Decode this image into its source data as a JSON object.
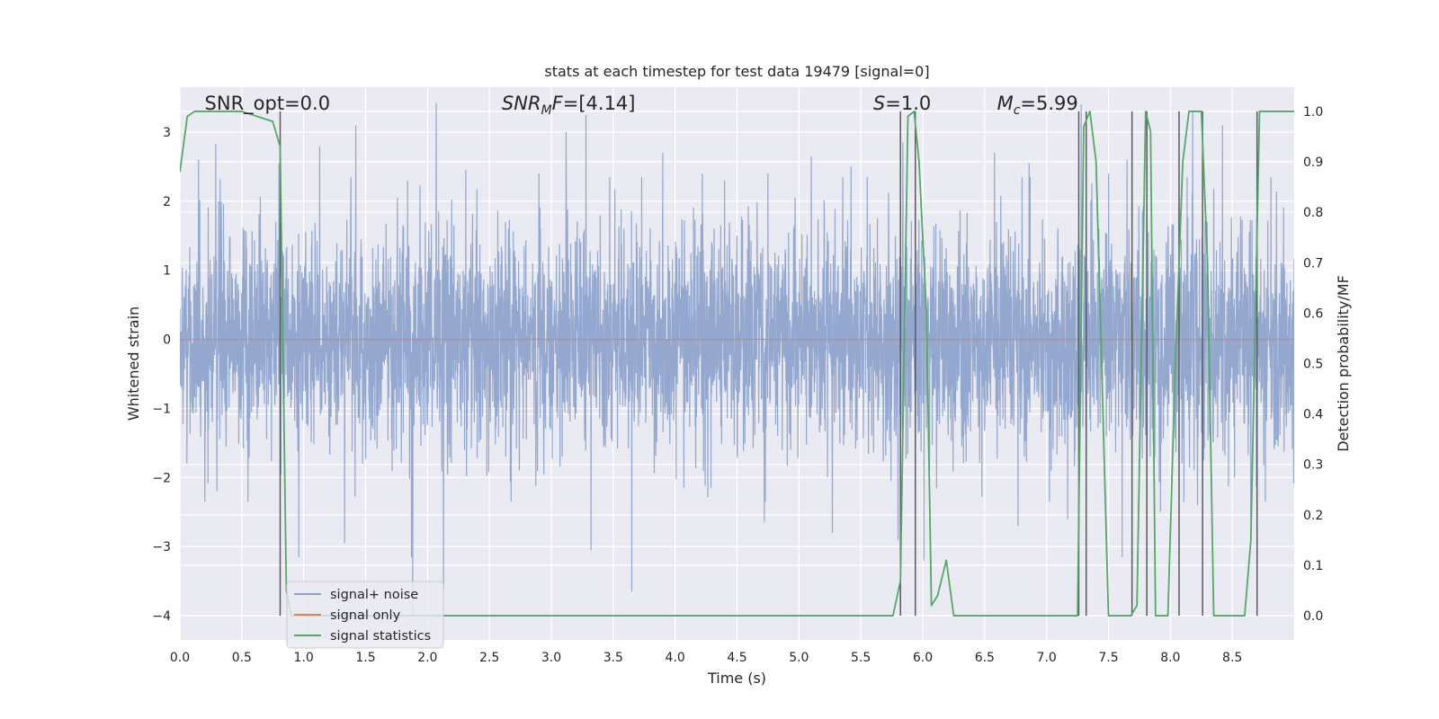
{
  "chart_data": {
    "type": "line",
    "title": "stats at each timestep for test data 19479 [signal=0]",
    "xlabel": "Time (s)",
    "ylabel": "Whitened strain",
    "ylabel_right": "Detection probability/MF",
    "xlim": [
      0.0,
      9.0
    ],
    "ylim": [
      -4.35,
      3.65
    ],
    "ylim_right": [
      -0.048,
      1.048
    ],
    "x_ticks": [
      0.0,
      0.5,
      1.0,
      1.5,
      2.0,
      2.5,
      3.0,
      3.5,
      4.0,
      4.5,
      5.0,
      5.5,
      6.0,
      6.5,
      7.0,
      7.5,
      8.0,
      8.5
    ],
    "x_tick_labels": [
      "0.0",
      "0.5",
      "1.0",
      "1.5",
      "2.0",
      "2.5",
      "3.0",
      "3.5",
      "4.0",
      "4.5",
      "5.0",
      "5.5",
      "6.0",
      "6.5",
      "7.0",
      "7.5",
      "8.0",
      "8.5"
    ],
    "y_ticks": [
      -4,
      -3,
      -2,
      -1,
      0,
      1,
      2,
      3
    ],
    "y_tick_labels": [
      "−4",
      "−3",
      "−2",
      "−1",
      "0",
      "1",
      "2",
      "3"
    ],
    "y_right_ticks": [
      0.0,
      0.1,
      0.2,
      0.3,
      0.4,
      0.5,
      0.6,
      0.7,
      0.8,
      0.9,
      1.0
    ],
    "y_right_tick_labels": [
      "0.0",
      "0.1",
      "0.2",
      "0.3",
      "0.4",
      "0.5",
      "0.6",
      "0.7",
      "0.8",
      "0.9",
      "1.0"
    ],
    "annotations": [
      {
        "text": "SNR_opt=0.0",
        "x": 0.2
      },
      {
        "text": "SNR_MF=[4.14]",
        "x": 2.6
      },
      {
        "text": "S=1.0",
        "x": 5.6
      },
      {
        "text": "M_c=5.99",
        "x": 6.6
      }
    ],
    "series": [
      {
        "name": "signal+ noise",
        "color": "#8ea3cc",
        "axis": "left",
        "noise_std": 0.78,
        "peaks_up": [
          [
            0.15,
            2.6
          ],
          [
            0.29,
            2.83
          ],
          [
            0.8,
            2.55
          ],
          [
            1.13,
            2.8
          ],
          [
            1.42,
            2.25
          ],
          [
            1.42,
            3.1
          ],
          [
            1.84,
            2.3
          ],
          [
            2.07,
            3.42
          ],
          [
            2.31,
            2.45
          ],
          [
            2.9,
            2.4
          ],
          [
            3.12,
            3.0
          ],
          [
            3.28,
            3.25
          ],
          [
            3.9,
            2.7
          ],
          [
            4.22,
            2.4
          ],
          [
            4.4,
            2.3
          ],
          [
            4.75,
            2.4
          ],
          [
            5.1,
            2.65
          ],
          [
            5.42,
            2.5
          ],
          [
            5.84,
            2.85
          ],
          [
            6.58,
            2.7
          ],
          [
            6.86,
            2.55
          ],
          [
            7.28,
            3.4
          ],
          [
            7.5,
            2.4
          ],
          [
            7.65,
            2.6
          ],
          [
            8.18,
            3.3
          ],
          [
            8.42,
            3.1
          ]
        ],
        "peaks_down": [
          [
            0.3,
            -2.2
          ],
          [
            0.55,
            -2.35
          ],
          [
            0.96,
            -3.15
          ],
          [
            1.33,
            -2.95
          ],
          [
            1.87,
            -3.15
          ],
          [
            1.88,
            -4.0
          ],
          [
            2.13,
            -3.65
          ],
          [
            3.32,
            -3.05
          ],
          [
            3.65,
            -3.65
          ],
          [
            4.72,
            -2.65
          ],
          [
            5.27,
            -2.8
          ],
          [
            5.8,
            -2.9
          ],
          [
            6.01,
            -3.2
          ],
          [
            6.77,
            -2.7
          ],
          [
            7.17,
            -2.6
          ],
          [
            7.61,
            -3.15
          ],
          [
            7.92,
            -2.5
          ],
          [
            8.22,
            -2.4
          ],
          [
            8.65,
            -2.85
          ]
        ]
      },
      {
        "name": "signal only",
        "color": "#dd8452",
        "axis": "left",
        "x": [
          0.0,
          9.0
        ],
        "y": [
          0.0,
          0.0
        ]
      },
      {
        "name": "signal statistics",
        "color": "#55a868",
        "axis": "right",
        "x": [
          0.0,
          0.06,
          0.12,
          0.18,
          0.25,
          0.5,
          0.75,
          0.81,
          0.86,
          0.9,
          1.0,
          2.0,
          3.0,
          4.0,
          5.0,
          5.5,
          5.76,
          5.82,
          5.88,
          5.93,
          5.97,
          6.03,
          6.07,
          6.12,
          6.19,
          6.25,
          6.32,
          7.0,
          7.2,
          7.25,
          7.3,
          7.35,
          7.4,
          7.5,
          7.68,
          7.73,
          7.8,
          7.84,
          7.88,
          7.98,
          8.04,
          8.1,
          8.15,
          8.25,
          8.3,
          8.35,
          8.4,
          8.6,
          8.65,
          8.72,
          8.9,
          9.0
        ],
        "y": [
          0.88,
          0.99,
          1.0,
          1.0,
          1.0,
          1.0,
          0.98,
          0.93,
          0.05,
          0.0,
          0.0,
          0.0,
          0.0,
          0.0,
          0.0,
          0.0,
          0.0,
          0.07,
          0.99,
          1.0,
          0.9,
          0.6,
          0.02,
          0.04,
          0.11,
          0.0,
          0.0,
          0.0,
          0.0,
          0.0,
          0.97,
          1.0,
          0.9,
          0.0,
          0.0,
          0.02,
          1.0,
          0.96,
          0.0,
          0.0,
          0.5,
          0.9,
          1.0,
          1.0,
          0.7,
          0.0,
          0.0,
          0.0,
          0.15,
          1.0,
          1.0,
          1.0
        ]
      }
    ],
    "vlines": [
      0.81,
      5.82,
      5.94,
      7.26,
      7.32,
      7.69,
      7.81,
      8.07,
      8.26,
      8.7
    ],
    "vline_color": "#5a5a5a",
    "legend_position": "lower-left",
    "grid": true
  }
}
